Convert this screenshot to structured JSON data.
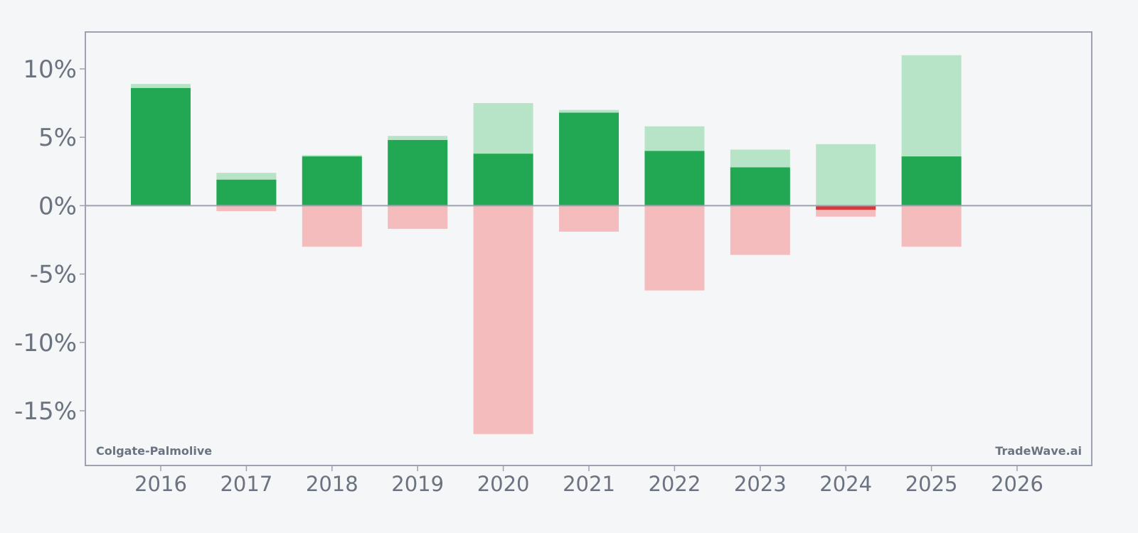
{
  "chart_data": {
    "type": "bar",
    "subtype": "range-bars-with-net-return",
    "categories": [
      "2016",
      "2017",
      "2018",
      "2019",
      "2020",
      "2021",
      "2022",
      "2023",
      "2024",
      "2025",
      "2026"
    ],
    "series": [
      {
        "key": "max_gain",
        "values": [
          8.9,
          2.4,
          3.7,
          5.1,
          7.5,
          7.0,
          5.8,
          4.1,
          4.5,
          11.0,
          null
        ]
      },
      {
        "key": "max_loss",
        "values": [
          0.0,
          -0.4,
          -3.0,
          -1.7,
          -16.7,
          -1.9,
          -6.2,
          -3.6,
          -0.8,
          -3.0,
          null
        ]
      },
      {
        "key": "net_return",
        "values": [
          8.6,
          1.9,
          3.6,
          4.8,
          3.8,
          6.8,
          4.0,
          2.8,
          -0.3,
          3.6,
          null
        ]
      }
    ],
    "y_ticks": [
      10,
      5,
      0,
      -5,
      -10,
      -15
    ],
    "y_tick_labels": [
      "10%",
      "5%",
      "0%",
      "-5%",
      "-10%",
      "-15%"
    ],
    "ylim": [
      -19,
      12.7
    ],
    "xlabel": "",
    "ylabel": "",
    "grid": false,
    "legend": "none",
    "colors": {
      "background": "#f5f6f8",
      "axis": "#9ca3af",
      "text": "#6b7280",
      "net_positive": "#22a852",
      "net_negative": "#d43a3a",
      "gain_range": "#b7e4c7",
      "loss_range": "#f4bcbc"
    }
  },
  "labels": {
    "ticker_name": "Colgate-Palmolive",
    "brand": "TradeWave.ai"
  }
}
